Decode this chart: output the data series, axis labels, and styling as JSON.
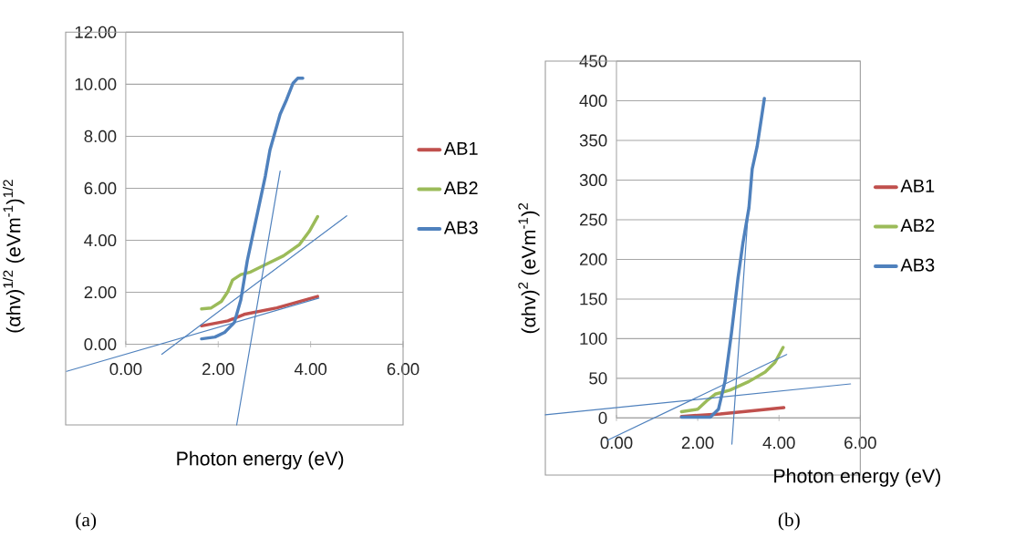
{
  "chart_data": [
    {
      "type": "line",
      "xlabel": "Photon energy    (eV)",
      "ylabel": "(αhv)$^{1/2}$   (eVm$^{-1}$)$^{1/2}$",
      "annotations": [
        "(a)"
      ],
      "xlim": [
        -1.3,
        6
      ],
      "ylim": [
        -3.1,
        12
      ],
      "xticks": [
        {
          "value": 0,
          "label": "0.00"
        },
        {
          "value": 2,
          "label": "2.00"
        },
        {
          "value": 4,
          "label": "4.00"
        },
        {
          "value": 6,
          "label": "6.00"
        }
      ],
      "yticks": [
        {
          "value": 0,
          "label": "0.00"
        },
        {
          "value": 2,
          "label": "2.00"
        },
        {
          "value": 4,
          "label": "4.00"
        },
        {
          "value": 6,
          "label": "6.00"
        },
        {
          "value": 8,
          "label": "8.00"
        },
        {
          "value": 10,
          "label": "10.00"
        },
        {
          "value": 12,
          "label": "12.00"
        }
      ],
      "grid": "y",
      "legend": "right",
      "series": [
        {
          "name": "AB1",
          "color": "#c0504d",
          "x": [
            1.64,
            2.21,
            2.56,
            3.27,
            4.15
          ],
          "values": [
            0.71,
            0.9,
            1.15,
            1.4,
            1.84
          ]
        },
        {
          "name": "AB2",
          "color": "#9bbb59",
          "x": [
            1.64,
            1.85,
            2.07,
            2.21,
            2.31,
            2.49,
            2.7,
            3.05,
            3.41,
            3.76,
            3.97,
            4.15
          ],
          "values": [
            1.36,
            1.4,
            1.65,
            2.03,
            2.47,
            2.68,
            2.78,
            3.09,
            3.4,
            3.84,
            4.34,
            4.91
          ]
        },
        {
          "name": "AB3",
          "color": "#4f81bd",
          "x": [
            1.64,
            1.93,
            2.14,
            2.35,
            2.49,
            2.63,
            2.84,
            3.02,
            3.12,
            3.34,
            3.48,
            3.62,
            3.72,
            3.83
          ],
          "values": [
            0.21,
            0.28,
            0.46,
            0.84,
            1.71,
            3.22,
            4.97,
            6.47,
            7.47,
            8.85,
            9.41,
            10.04,
            10.23,
            10.23
          ]
        },
        {
          "color": "#4f81bd",
          "x": [
            -1.28,
            4.18
          ],
          "values": [
            -1.04,
            1.78
          ]
        },
        {
          "color": "#4f81bd",
          "x": [
            0.78,
            4.78
          ],
          "values": [
            -0.38,
            4.94
          ]
        },
        {
          "color": "#4f81bd",
          "x": [
            2.4,
            3.34
          ],
          "values": [
            -3.1,
            6.66
          ]
        }
      ]
    },
    {
      "type": "line",
      "xlabel": "Photon energy    (eV)",
      "ylabel": "(αhv)$^{2}$  (eVm$^{-1}$)$^{2}$",
      "annotations": [
        "(b)"
      ],
      "xlim": [
        -1.75,
        6
      ],
      "ylim": [
        -72,
        450
      ],
      "xticks": [
        {
          "value": 0,
          "label": "0.00"
        },
        {
          "value": 2,
          "label": "2.00"
        },
        {
          "value": 4,
          "label": "4.00"
        },
        {
          "value": 6,
          "label": "6.00"
        }
      ],
      "yticks": [
        0,
        50,
        100,
        150,
        200,
        250,
        300,
        350,
        400,
        450
      ],
      "grid": "y",
      "legend": "right",
      "series": [
        {
          "name": "AB1",
          "color": "#c0504d",
          "x": [
            1.6,
            2.55,
            3.34,
            4.12
          ],
          "values": [
            2,
            5,
            9,
            13
          ]
        },
        {
          "name": "AB2",
          "color": "#9bbb59",
          "x": [
            1.6,
            2.0,
            2.23,
            2.43,
            2.79,
            3.26,
            3.66,
            3.9,
            4.1
          ],
          "values": [
            8,
            11,
            22,
            30,
            35,
            46,
            58,
            70,
            89
          ]
        },
        {
          "name": "AB3",
          "color": "#4f81bd",
          "x": [
            1.6,
            2.31,
            2.51,
            2.67,
            2.83,
            2.99,
            3.11,
            3.26,
            3.34,
            3.46,
            3.57,
            3.64
          ],
          "values": [
            1,
            1,
            11,
            46,
            107,
            176,
            220,
            265,
            314,
            342,
            379,
            403
          ]
        },
        {
          "color": "#4f81bd",
          "x": [
            -1.75,
            5.76
          ],
          "values": [
            4,
            43
          ]
        },
        {
          "color": "#4f81bd",
          "x": [
            -0.22,
            4.19
          ],
          "values": [
            -28,
            80
          ]
        },
        {
          "color": "#4f81bd",
          "x": [
            2.84,
            3.26
          ],
          "values": [
            -33,
            273
          ]
        }
      ]
    }
  ]
}
